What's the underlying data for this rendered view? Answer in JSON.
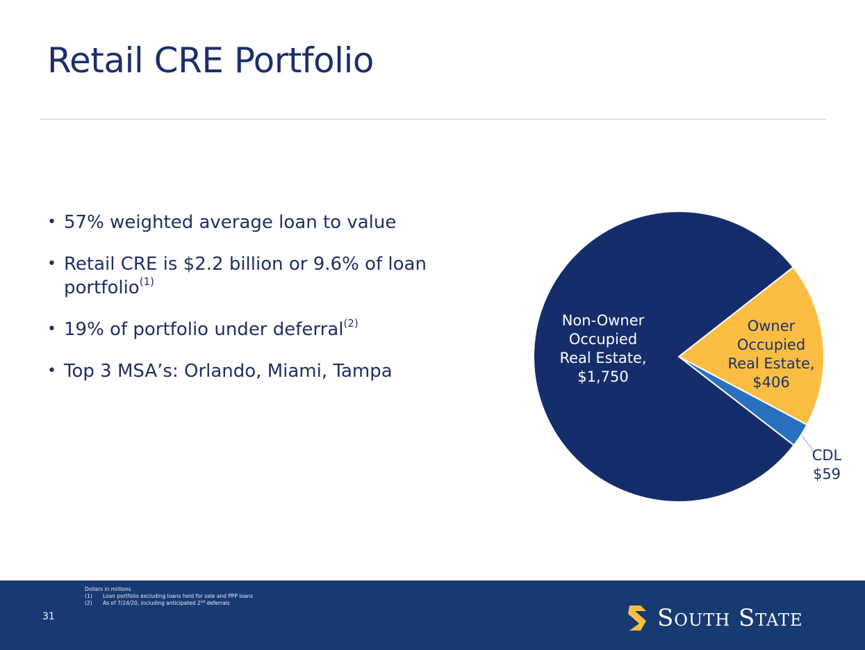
{
  "slide": {
    "title": "Retail CRE Portfolio",
    "bullets": [
      {
        "text": "57% weighted average loan to value",
        "sup": ""
      },
      {
        "text": "Retail CRE is $2.2 billion or 9.6% of loan portfolio",
        "sup": "(1)"
      },
      {
        "text": "19% of portfolio under deferral",
        "sup": "(2)"
      },
      {
        "text": "Top 3 MSA’s: Orlando, Miami, Tampa",
        "sup": ""
      }
    ]
  },
  "chart_data": {
    "type": "pie",
    "slices": [
      {
        "label_lines": [
          "Non-Owner",
          "Occupied",
          "Real Estate,",
          "$1,750"
        ],
        "category": "Non-Owner Occupied Real Estate",
        "value": 1750,
        "color": "#162d6b",
        "label_color": "#ffffff"
      },
      {
        "label_lines": [
          "Owner",
          "Occupied",
          "Real Estate,",
          "$406"
        ],
        "category": "Owner Occupied Real Estate",
        "value": 406,
        "color": "#fcbe42",
        "label_color": "#1b2f6b"
      },
      {
        "label_lines": [
          "CDL",
          "$59"
        ],
        "category": "CDL",
        "value": 59,
        "color": "#2970bf",
        "label_color": "#1b2f6b"
      }
    ]
  },
  "footer": {
    "page_number": "31",
    "notes_heading": "Dollars in millions",
    "notes": [
      {
        "num": "(1)",
        "text": "Loan portfolio excluding loans held for sale and PPP loans",
        "sup": "",
        "tail": ""
      },
      {
        "num": "(2)",
        "text": "As of 7/24/20, including anticipated 2",
        "sup": "nd",
        "tail": " deferrals"
      }
    ],
    "logo_text": "South State",
    "logo_color": "#fcbe42"
  }
}
